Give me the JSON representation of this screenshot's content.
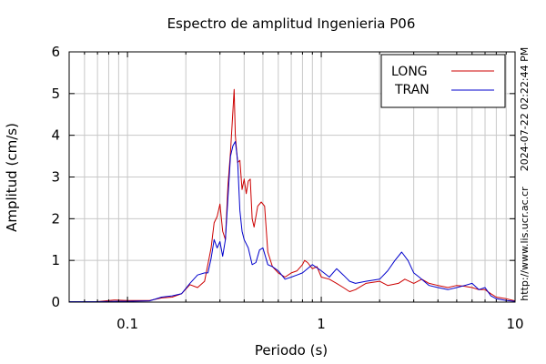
{
  "chart_data": {
    "type": "line",
    "title": "Espectro de amplitud Ingenieria P06",
    "xlabel": "Periodo (s)",
    "ylabel": "Amplitud (cm/s)",
    "x_scale": "log",
    "xlim": [
      0.05,
      10
    ],
    "ylim": [
      0,
      6
    ],
    "x_tick_labels": [
      "0.1",
      "1",
      "10"
    ],
    "y_tick_labels": [
      "0",
      "1",
      "2",
      "3",
      "4",
      "5",
      "6"
    ],
    "grid": true,
    "legend_position": "top-right",
    "timestamp": "2024-07-22 02:22:44 PM",
    "url": "http://www.lis.ucr.ac.cr",
    "series": [
      {
        "name": "LONG",
        "color": "#cc0000",
        "points": [
          [
            0.05,
            0.01
          ],
          [
            0.07,
            0.01
          ],
          [
            0.085,
            0.05
          ],
          [
            0.1,
            0.04
          ],
          [
            0.13,
            0.04
          ],
          [
            0.15,
            0.1
          ],
          [
            0.17,
            0.12
          ],
          [
            0.19,
            0.2
          ],
          [
            0.21,
            0.42
          ],
          [
            0.23,
            0.35
          ],
          [
            0.25,
            0.5
          ],
          [
            0.27,
            1.3
          ],
          [
            0.28,
            1.9
          ],
          [
            0.29,
            2.05
          ],
          [
            0.3,
            2.35
          ],
          [
            0.31,
            1.7
          ],
          [
            0.32,
            1.5
          ],
          [
            0.33,
            2.8
          ],
          [
            0.34,
            3.6
          ],
          [
            0.35,
            4.6
          ],
          [
            0.355,
            5.1
          ],
          [
            0.36,
            4.0
          ],
          [
            0.37,
            3.35
          ],
          [
            0.38,
            3.4
          ],
          [
            0.39,
            2.7
          ],
          [
            0.4,
            2.95
          ],
          [
            0.41,
            2.6
          ],
          [
            0.42,
            2.9
          ],
          [
            0.43,
            2.95
          ],
          [
            0.44,
            2.0
          ],
          [
            0.45,
            1.8
          ],
          [
            0.47,
            2.3
          ],
          [
            0.49,
            2.4
          ],
          [
            0.51,
            2.3
          ],
          [
            0.53,
            1.2
          ],
          [
            0.56,
            0.85
          ],
          [
            0.6,
            0.7
          ],
          [
            0.65,
            0.6
          ],
          [
            0.7,
            0.7
          ],
          [
            0.75,
            0.75
          ],
          [
            0.8,
            0.9
          ],
          [
            0.82,
            1.0
          ],
          [
            0.85,
            0.95
          ],
          [
            0.9,
            0.8
          ],
          [
            0.95,
            0.85
          ],
          [
            1.0,
            0.6
          ],
          [
            1.1,
            0.55
          ],
          [
            1.2,
            0.45
          ],
          [
            1.3,
            0.35
          ],
          [
            1.4,
            0.25
          ],
          [
            1.5,
            0.3
          ],
          [
            1.7,
            0.45
          ],
          [
            2.0,
            0.5
          ],
          [
            2.2,
            0.4
          ],
          [
            2.5,
            0.45
          ],
          [
            2.7,
            0.55
          ],
          [
            3.0,
            0.45
          ],
          [
            3.3,
            0.55
          ],
          [
            3.6,
            0.45
          ],
          [
            4.0,
            0.4
          ],
          [
            4.5,
            0.35
          ],
          [
            5.0,
            0.4
          ],
          [
            5.5,
            0.38
          ],
          [
            6.0,
            0.35
          ],
          [
            6.5,
            0.3
          ],
          [
            7.0,
            0.3
          ],
          [
            7.5,
            0.2
          ],
          [
            8.0,
            0.12
          ],
          [
            9.0,
            0.08
          ],
          [
            10.0,
            0.03
          ]
        ]
      },
      {
        "name": "TRAN",
        "color": "#0000cc",
        "points": [
          [
            0.05,
            0.01
          ],
          [
            0.07,
            0.01
          ],
          [
            0.09,
            0.02
          ],
          [
            0.1,
            0.02
          ],
          [
            0.13,
            0.03
          ],
          [
            0.15,
            0.12
          ],
          [
            0.17,
            0.15
          ],
          [
            0.19,
            0.2
          ],
          [
            0.21,
            0.45
          ],
          [
            0.23,
            0.65
          ],
          [
            0.25,
            0.7
          ],
          [
            0.26,
            0.7
          ],
          [
            0.27,
            1.05
          ],
          [
            0.28,
            1.5
          ],
          [
            0.29,
            1.3
          ],
          [
            0.3,
            1.45
          ],
          [
            0.31,
            1.1
          ],
          [
            0.32,
            1.5
          ],
          [
            0.33,
            2.5
          ],
          [
            0.34,
            3.5
          ],
          [
            0.35,
            3.75
          ],
          [
            0.36,
            3.85
          ],
          [
            0.37,
            3.4
          ],
          [
            0.38,
            2.2
          ],
          [
            0.39,
            1.7
          ],
          [
            0.4,
            1.5
          ],
          [
            0.42,
            1.3
          ],
          [
            0.44,
            0.9
          ],
          [
            0.46,
            0.95
          ],
          [
            0.48,
            1.25
          ],
          [
            0.5,
            1.3
          ],
          [
            0.53,
            0.9
          ],
          [
            0.56,
            0.85
          ],
          [
            0.6,
            0.75
          ],
          [
            0.65,
            0.55
          ],
          [
            0.7,
            0.6
          ],
          [
            0.75,
            0.65
          ],
          [
            0.8,
            0.7
          ],
          [
            0.9,
            0.9
          ],
          [
            1.0,
            0.75
          ],
          [
            1.1,
            0.6
          ],
          [
            1.2,
            0.8
          ],
          [
            1.3,
            0.65
          ],
          [
            1.4,
            0.5
          ],
          [
            1.5,
            0.45
          ],
          [
            1.7,
            0.5
          ],
          [
            2.0,
            0.55
          ],
          [
            2.2,
            0.75
          ],
          [
            2.4,
            1.0
          ],
          [
            2.6,
            1.2
          ],
          [
            2.8,
            1.0
          ],
          [
            3.0,
            0.7
          ],
          [
            3.2,
            0.6
          ],
          [
            3.6,
            0.4
          ],
          [
            4.0,
            0.35
          ],
          [
            4.5,
            0.3
          ],
          [
            5.0,
            0.35
          ],
          [
            5.5,
            0.4
          ],
          [
            6.0,
            0.45
          ],
          [
            6.5,
            0.3
          ],
          [
            7.0,
            0.35
          ],
          [
            7.5,
            0.15
          ],
          [
            8.0,
            0.08
          ],
          [
            9.0,
            0.04
          ],
          [
            10.0,
            0.02
          ]
        ]
      }
    ]
  }
}
